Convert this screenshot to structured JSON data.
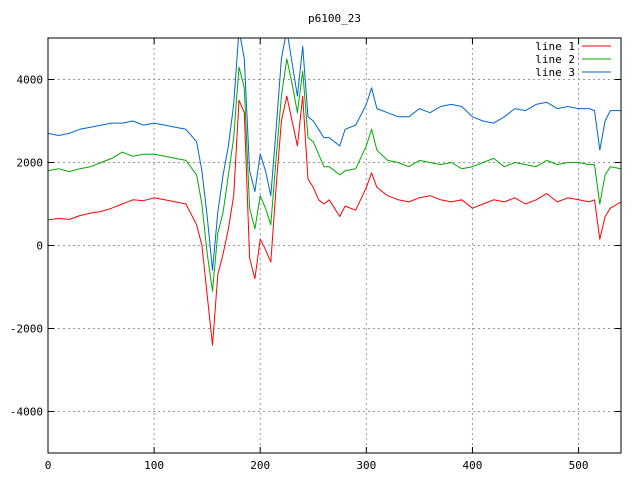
{
  "chart_data": {
    "type": "line",
    "title": "p6100_23",
    "xlabel": "",
    "ylabel": "",
    "xlim": [
      0,
      540
    ],
    "ylim": [
      -5000,
      5000
    ],
    "grid": true,
    "legend_placement": "top-right",
    "x_ticks": [
      0,
      100,
      200,
      300,
      400,
      500
    ],
    "y_ticks": [
      -4000,
      -2000,
      0,
      2000,
      4000
    ],
    "x_tick_labels": [
      "0",
      "100",
      "200",
      "300",
      "400",
      "500"
    ],
    "y_tick_labels": [
      "-4000",
      "-2000",
      "0",
      "2000",
      "4000"
    ],
    "x": [
      0,
      10,
      20,
      30,
      40,
      50,
      60,
      70,
      80,
      90,
      100,
      110,
      120,
      130,
      140,
      145,
      150,
      155,
      160,
      165,
      170,
      175,
      180,
      185,
      190,
      195,
      200,
      205,
      210,
      215,
      220,
      225,
      230,
      235,
      240,
      245,
      250,
      255,
      260,
      265,
      270,
      275,
      280,
      290,
      300,
      305,
      310,
      320,
      330,
      340,
      350,
      360,
      370,
      380,
      390,
      400,
      410,
      420,
      430,
      440,
      450,
      460,
      470,
      480,
      490,
      500,
      510,
      515,
      520,
      525,
      530,
      540
    ],
    "series": [
      {
        "name": "line 1",
        "color": "#ff0000",
        "values": [
          620,
          650,
          630,
          720,
          780,
          820,
          900,
          1000,
          1100,
          1080,
          1150,
          1100,
          1050,
          1000,
          500,
          0,
          -1200,
          -2400,
          -700,
          -200,
          400,
          1200,
          3500,
          3200,
          -300,
          -800,
          150,
          -100,
          -400,
          1400,
          3000,
          3600,
          3000,
          2400,
          3600,
          1600,
          1400,
          1100,
          1000,
          1100,
          900,
          700,
          950,
          850,
          1400,
          1750,
          1400,
          1200,
          1100,
          1050,
          1150,
          1200,
          1100,
          1050,
          1100,
          900,
          1000,
          1100,
          1050,
          1150,
          1000,
          1100,
          1250,
          1050,
          1150,
          1100,
          1050,
          1100,
          150,
          700,
          900,
          1050
        ]
      },
      {
        "name": "line 2",
        "color": "#00aa00",
        "values": [
          1800,
          1850,
          1780,
          1850,
          1900,
          2000,
          2100,
          2250,
          2150,
          2200,
          2200,
          2150,
          2100,
          2050,
          1700,
          1000,
          -200,
          -1100,
          300,
          800,
          1700,
          2600,
          4300,
          3800,
          900,
          400,
          1200,
          900,
          500,
          2100,
          3600,
          4500,
          3900,
          3200,
          4200,
          2600,
          2500,
          2200,
          1900,
          1900,
          1800,
          1700,
          1800,
          1850,
          2400,
          2800,
          2300,
          2050,
          2000,
          1900,
          2050,
          2000,
          1950,
          2000,
          1850,
          1900,
          2000,
          2100,
          1900,
          2000,
          1950,
          1900,
          2050,
          1950,
          2000,
          2000,
          1950,
          1950,
          1000,
          1700,
          1900,
          1850
        ]
      },
      {
        "name": "line 3",
        "color": "#0066cc",
        "values": [
          2700,
          2650,
          2700,
          2800,
          2850,
          2900,
          2950,
          2950,
          3000,
          2900,
          2950,
          2900,
          2850,
          2800,
          2500,
          1800,
          700,
          -600,
          800,
          1700,
          2400,
          3400,
          5200,
          4500,
          1800,
          1300,
          2200,
          1800,
          1200,
          2800,
          4500,
          5200,
          4400,
          3600,
          4800,
          3100,
          3000,
          2800,
          2600,
          2600,
          2500,
          2400,
          2800,
          2900,
          3400,
          3800,
          3300,
          3200,
          3100,
          3100,
          3300,
          3200,
          3350,
          3400,
          3350,
          3100,
          3000,
          2950,
          3100,
          3300,
          3250,
          3400,
          3450,
          3300,
          3350,
          3300,
          3300,
          3250,
          2300,
          3000,
          3250,
          3250
        ]
      }
    ]
  }
}
